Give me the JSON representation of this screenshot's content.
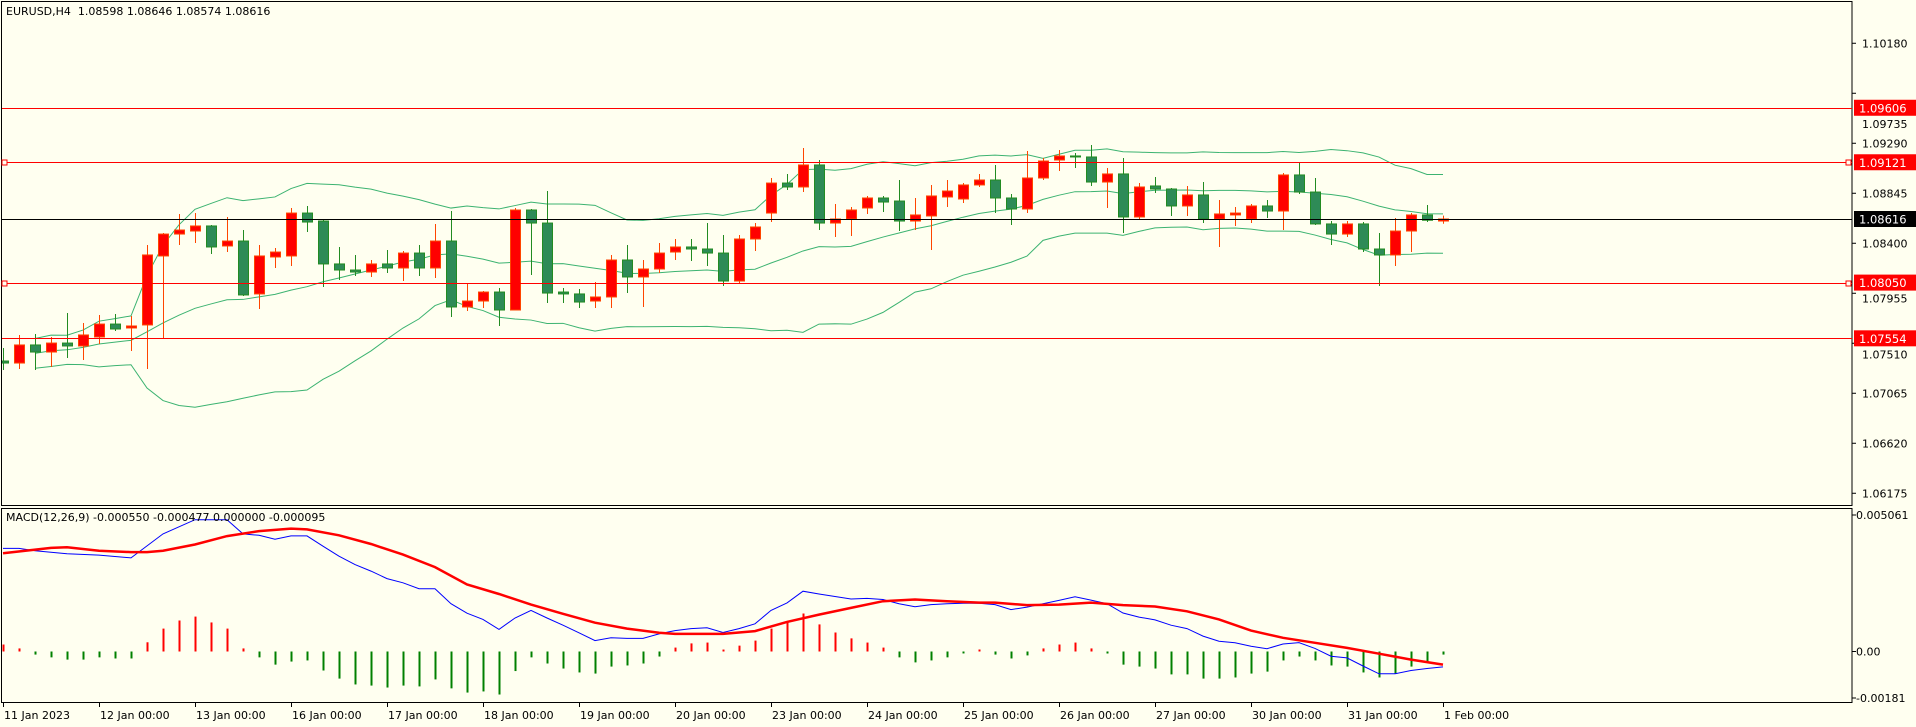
{
  "header": {
    "symbol_timeframe": "EURUSD,H4",
    "ohlc_text": "1.08598 1.08646 1.08574 1.08616"
  },
  "macd_header": {
    "name": "MACD(12,26,9)",
    "values_text": "-0.000550 -0.000477 0.000000 -0.000095"
  },
  "colors": {
    "background": "#FFFFF0",
    "bull_body": "#FF0000",
    "bull_outline": "#FF4500",
    "bear_body": "#2E8B57",
    "bear_outline": "#228B22",
    "bands": "#3CB371",
    "level_line": "#FF0000",
    "current_price": "#000000",
    "macd_line": "#0000FF",
    "signal_line": "#FF0000",
    "hist_pos": "#FF0000",
    "hist_neg": "#008000"
  },
  "chart_data": [
    {
      "type": "candlestick",
      "title": "EURUSD,H4",
      "ylim": [
        1.059,
        1.1067
      ],
      "price_axis_ticks": [
        "1.10180",
        "1.09735",
        "1.09290",
        "1.08845",
        "1.08400",
        "1.07955",
        "1.07510",
        "1.07065",
        "1.06620",
        "1.06175"
      ],
      "x_tick_labels": [
        "11 Jan 2023",
        "12 Jan 00:00",
        "13 Jan 00:00",
        "16 Jan 00:00",
        "17 Jan 00:00",
        "18 Jan 00:00",
        "19 Jan 00:00",
        "20 Jan 00:00",
        "23 Jan 00:00",
        "24 Jan 00:00",
        "25 Jan 00:00",
        "26 Jan 00:00",
        "27 Jan 00:00",
        "30 Jan 00:00",
        "31 Jan 00:00",
        "1 Feb 00:00"
      ],
      "x_tick_candle_index": [
        0,
        6,
        12,
        18,
        24,
        30,
        36,
        42,
        48,
        54,
        60,
        66,
        72,
        78,
        84,
        90
      ],
      "horizontal_levels": [
        {
          "price": 1.09606,
          "label": "1.09606",
          "anchored": false
        },
        {
          "price": 1.09121,
          "label": "1.09121",
          "anchored": true
        },
        {
          "price": 1.0805,
          "label": "1.08050",
          "anchored": true
        },
        {
          "price": 1.07554,
          "label": "1.07554",
          "anchored": false
        }
      ],
      "current_price": {
        "price": 1.08616,
        "label": "1.08616"
      },
      "indicator": "Bollinger Bands (20, 2)",
      "ohlc": [
        [
          1.07352,
          1.07468,
          1.07272,
          1.07334
        ],
        [
          1.07334,
          1.07584,
          1.07281,
          1.07495
        ],
        [
          1.07495,
          1.07593,
          1.07272,
          1.07432
        ],
        [
          1.07432,
          1.07566,
          1.07299,
          1.07512
        ],
        [
          1.07512,
          1.07779,
          1.07379,
          1.07486
        ],
        [
          1.07486,
          1.0769,
          1.07361,
          1.07584
        ],
        [
          1.07566,
          1.07762,
          1.07504,
          1.07681
        ],
        [
          1.07681,
          1.07771,
          1.07619,
          1.07637
        ],
        [
          1.07646,
          1.07753,
          1.07441,
          1.07664
        ],
        [
          1.07673,
          1.08385,
          1.07281,
          1.08296
        ],
        [
          1.08287,
          1.08491,
          1.07548,
          1.08482
        ],
        [
          1.08482,
          1.08661,
          1.08385,
          1.08518
        ],
        [
          1.08509,
          1.08669,
          1.08402,
          1.08554
        ],
        [
          1.08554,
          1.08563,
          1.08305,
          1.08367
        ],
        [
          1.08376,
          1.08634,
          1.08322,
          1.0842
        ],
        [
          1.0842,
          1.08518,
          1.07931,
          1.0794
        ],
        [
          1.07949,
          1.08385,
          1.07815,
          1.08287
        ],
        [
          1.08278,
          1.08358,
          1.0818,
          1.08322
        ],
        [
          1.08287,
          1.08714,
          1.08198,
          1.08669
        ],
        [
          1.08669,
          1.08732,
          1.085,
          1.08589
        ],
        [
          1.08598,
          1.0861,
          1.08011,
          1.08216
        ],
        [
          1.08216,
          1.08367,
          1.08073,
          1.08162
        ],
        [
          1.08162,
          1.08296,
          1.08109,
          1.08144
        ],
        [
          1.08144,
          1.08251,
          1.081,
          1.08216
        ],
        [
          1.08216,
          1.0834,
          1.08135,
          1.0818
        ],
        [
          1.0818,
          1.08331,
          1.08064,
          1.08313
        ],
        [
          1.08313,
          1.08385,
          1.08109,
          1.0818
        ],
        [
          1.0818,
          1.08572,
          1.08091,
          1.0842
        ],
        [
          1.0842,
          1.08687,
          1.07744,
          1.07833
        ],
        [
          1.07833,
          1.08046,
          1.07797,
          1.07886
        ],
        [
          1.07886,
          1.07975,
          1.07824,
          1.07966
        ],
        [
          1.07966,
          1.08002,
          1.07664,
          1.07806
        ],
        [
          1.07806,
          1.08714,
          1.07802,
          1.08696
        ],
        [
          1.08696,
          1.08705,
          1.08118,
          1.0858
        ],
        [
          1.0858,
          1.08865,
          1.07868,
          1.07957
        ],
        [
          1.07966,
          1.08002,
          1.07868,
          1.07949
        ],
        [
          1.07949,
          1.07993,
          1.07824,
          1.07877
        ],
        [
          1.07886,
          1.08055,
          1.07824,
          1.07922
        ],
        [
          1.07922,
          1.08296,
          1.07824,
          1.08251
        ],
        [
          1.08251,
          1.08385,
          1.07957,
          1.081
        ],
        [
          1.081,
          1.08251,
          1.07833,
          1.08171
        ],
        [
          1.08171,
          1.08402,
          1.08135,
          1.08313
        ],
        [
          1.08322,
          1.08438,
          1.08251,
          1.08367
        ],
        [
          1.08367,
          1.08438,
          1.08242,
          1.08349
        ],
        [
          1.08349,
          1.0858,
          1.08198,
          1.08313
        ],
        [
          1.08313,
          1.08474,
          1.0802,
          1.08064
        ],
        [
          1.08064,
          1.08474,
          1.08046,
          1.08438
        ],
        [
          1.08438,
          1.0858,
          1.08331,
          1.08545
        ],
        [
          1.08669,
          1.08981,
          1.08589,
          1.08936
        ],
        [
          1.08936,
          1.09017,
          1.08874,
          1.08901
        ],
        [
          1.08901,
          1.09248,
          1.08856,
          1.09097
        ],
        [
          1.09097,
          1.09141,
          1.08518,
          1.0858
        ],
        [
          1.0858,
          1.0875,
          1.08456,
          1.08616
        ],
        [
          1.08616,
          1.08723,
          1.08465,
          1.08696
        ],
        [
          1.08714,
          1.08821,
          1.08661,
          1.08803
        ],
        [
          1.08803,
          1.08821,
          1.08678,
          1.08767
        ],
        [
          1.08776,
          1.08963,
          1.08509,
          1.08598
        ],
        [
          1.08598,
          1.08803,
          1.08518,
          1.08652
        ],
        [
          1.08643,
          1.08919,
          1.0834,
          1.08821
        ],
        [
          1.08812,
          1.08963,
          1.08723,
          1.08865
        ],
        [
          1.08794,
          1.08936,
          1.08758,
          1.08919
        ],
        [
          1.08919,
          1.09017,
          1.08901,
          1.08963
        ],
        [
          1.08963,
          1.09097,
          1.08669,
          1.08803
        ],
        [
          1.08803,
          1.08839,
          1.08563,
          1.08705
        ],
        [
          1.08705,
          1.09221,
          1.08669,
          1.08981
        ],
        [
          1.08981,
          1.09159,
          1.08963,
          1.09132
        ],
        [
          1.09141,
          1.0923,
          1.09043,
          1.09177
        ],
        [
          1.09177,
          1.09203,
          1.0907,
          1.09168
        ],
        [
          1.09168,
          1.09275,
          1.0891,
          1.08945
        ],
        [
          1.08945,
          1.0907,
          1.08714,
          1.09017
        ],
        [
          1.09017,
          1.09159,
          1.08491,
          1.08634
        ],
        [
          1.08634,
          1.08936,
          1.08616,
          1.08901
        ],
        [
          1.0891,
          1.0899,
          1.08847,
          1.08883
        ],
        [
          1.08883,
          1.08892,
          1.08643,
          1.08732
        ],
        [
          1.08732,
          1.0891,
          1.08643,
          1.0883
        ],
        [
          1.0883,
          1.08945,
          1.0858,
          1.08616
        ],
        [
          1.08616,
          1.08785,
          1.08367,
          1.08661
        ],
        [
          1.08652,
          1.08723,
          1.08554,
          1.08669
        ],
        [
          1.08616,
          1.0875,
          1.0858,
          1.08732
        ],
        [
          1.08732,
          1.08785,
          1.08625,
          1.08687
        ],
        [
          1.08687,
          1.09025,
          1.08518,
          1.09008
        ],
        [
          1.09008,
          1.09123,
          1.08839,
          1.08856
        ],
        [
          1.08856,
          1.08981,
          1.08563,
          1.08572
        ],
        [
          1.08572,
          1.08598,
          1.08385,
          1.08482
        ],
        [
          1.08482,
          1.08598,
          1.08456,
          1.08572
        ],
        [
          1.08572,
          1.08589,
          1.08322,
          1.08349
        ],
        [
          1.08349,
          1.08491,
          1.0802,
          1.08296
        ],
        [
          1.08296,
          1.08625,
          1.08198,
          1.08509
        ],
        [
          1.08509,
          1.08669,
          1.08322,
          1.08652
        ],
        [
          1.08652,
          1.08741,
          1.08589,
          1.08605
        ],
        [
          1.08598,
          1.08646,
          1.08574,
          1.08616
        ]
      ]
    },
    {
      "type": "macd",
      "title": "MACD(12,26,9)",
      "ylim": [
        -0.00181,
        0.005061
      ],
      "axis_ticks": [
        "0.005061",
        "0.00",
        "-0.00181"
      ],
      "histogram": [
        0.00025,
        0.00011,
        -0.00011,
        -0.00021,
        -0.00029,
        -0.00029,
        -0.00021,
        -0.00025,
        -0.00025,
        0.00033,
        0.00082,
        0.00111,
        0.00125,
        0.00104,
        0.00082,
        0.00011,
        -0.00021,
        -0.00047,
        -0.00036,
        -0.00032,
        -0.00068,
        -0.00097,
        -0.00118,
        -0.00122,
        -0.00129,
        -0.00122,
        -0.00125,
        -0.001,
        -0.00132,
        -0.00147,
        -0.00143,
        -0.00154,
        -0.0007,
        -0.00021,
        -0.00043,
        -0.00061,
        -0.00075,
        -0.00079,
        -0.00054,
        -0.0005,
        -0.00043,
        -0.00018,
        0.00014,
        0.00029,
        0.00032,
        7e-05,
        0.00021,
        0.00039,
        0.00082,
        0.00107,
        0.00136,
        0.00097,
        0.00068,
        0.00047,
        0.00032,
        0.00014,
        -0.00021,
        -0.00039,
        -0.00032,
        -0.00021,
        -7e-05,
        4e-05,
        -0.00011,
        -0.00025,
        -0.00014,
        0.00011,
        0.00025,
        0.00032,
        0.00011,
        -2e-05,
        -0.00047,
        -0.00054,
        -0.00061,
        -0.00082,
        -0.00082,
        -0.00097,
        -0.00097,
        -0.00093,
        -0.00079,
        -0.00072,
        -0.00032,
        -0.00018,
        -0.00032,
        -0.0005,
        -0.00054,
        -0.00075,
        -0.00093,
        -0.00079,
        -0.00054,
        -0.00039,
        -0.00011
      ],
      "macd_line_points": [
        [
          0,
          0.00369
        ],
        [
          1,
          0.00369
        ],
        [
          2,
          0.00361
        ],
        [
          4,
          0.0035
        ],
        [
          6,
          0.00345
        ],
        [
          8,
          0.00335
        ],
        [
          10,
          0.00421
        ],
        [
          12,
          0.00472
        ],
        [
          14,
          0.00472
        ],
        [
          15,
          0.00421
        ],
        [
          16,
          0.00416
        ],
        [
          17,
          0.00402
        ],
        [
          18,
          0.00414
        ],
        [
          19,
          0.00414
        ],
        [
          20,
          0.00377
        ],
        [
          21,
          0.00341
        ],
        [
          22,
          0.00311
        ],
        [
          23,
          0.00288
        ],
        [
          24,
          0.00261
        ],
        [
          25,
          0.00246
        ],
        [
          26,
          0.00225
        ],
        [
          27,
          0.00225
        ],
        [
          28,
          0.00171
        ],
        [
          29,
          0.00137
        ],
        [
          30,
          0.00115
        ],
        [
          31,
          0.00079
        ],
        [
          32,
          0.0012
        ],
        [
          33,
          0.00147
        ],
        [
          34,
          0.0012
        ],
        [
          35,
          0.00094
        ],
        [
          36,
          0.00067
        ],
        [
          37,
          0.00039
        ],
        [
          38,
          0.00049
        ],
        [
          39,
          0.00047
        ],
        [
          40,
          0.00047
        ],
        [
          41,
          0.00063
        ],
        [
          42,
          0.00075
        ],
        [
          43,
          0.00082
        ],
        [
          44,
          0.00085
        ],
        [
          45,
          0.00068
        ],
        [
          46,
          0.00082
        ],
        [
          47,
          0.00099
        ],
        [
          48,
          0.00147
        ],
        [
          49,
          0.00174
        ],
        [
          50,
          0.00216
        ],
        [
          51,
          0.00206
        ],
        [
          52,
          0.00197
        ],
        [
          53,
          0.00188
        ],
        [
          54,
          0.0019
        ],
        [
          55,
          0.00186
        ],
        [
          56,
          0.00171
        ],
        [
          57,
          0.0016
        ],
        [
          58,
          0.00168
        ],
        [
          59,
          0.00171
        ],
        [
          60,
          0.00173
        ],
        [
          61,
          0.00173
        ],
        [
          62,
          0.00168
        ],
        [
          63,
          0.0015
        ],
        [
          64,
          0.00159
        ],
        [
          65,
          0.00171
        ],
        [
          66,
          0.00183
        ],
        [
          67,
          0.00196
        ],
        [
          68,
          0.00184
        ],
        [
          69,
          0.00171
        ],
        [
          70,
          0.00138
        ],
        [
          71,
          0.00123
        ],
        [
          72,
          0.00113
        ],
        [
          73,
          0.00094
        ],
        [
          74,
          0.00082
        ],
        [
          75,
          0.00055
        ],
        [
          76,
          0.00037
        ],
        [
          77,
          0.00031
        ],
        [
          78,
          0.00019
        ],
        [
          79,
          0.0001
        ],
        [
          80,
          0.00027
        ],
        [
          81,
          0.00032
        ],
        [
          82,
          0.00011
        ],
        [
          83,
          -0.00017
        ],
        [
          84,
          -0.00023
        ],
        [
          85,
          -0.00052
        ],
        [
          86,
          -0.0008
        ],
        [
          87,
          -0.0008
        ],
        [
          88,
          -0.00068
        ],
        [
          89,
          -0.00061
        ],
        [
          90,
          -0.00055
        ]
      ],
      "signal_line_points": [
        [
          0,
          0.00352
        ],
        [
          3,
          0.00371
        ],
        [
          4,
          0.00373
        ],
        [
          6,
          0.00361
        ],
        [
          8,
          0.00356
        ],
        [
          9,
          0.00356
        ],
        [
          10,
          0.00361
        ],
        [
          12,
          0.00383
        ],
        [
          14,
          0.00413
        ],
        [
          16,
          0.00431
        ],
        [
          18,
          0.0044
        ],
        [
          19,
          0.00437
        ],
        [
          21,
          0.00416
        ],
        [
          23,
          0.00385
        ],
        [
          25,
          0.00347
        ],
        [
          27,
          0.00302
        ],
        [
          29,
          0.0024
        ],
        [
          31,
          0.00206
        ],
        [
          33,
          0.00168
        ],
        [
          35,
          0.00135
        ],
        [
          37,
          0.00103
        ],
        [
          39,
          0.00082
        ],
        [
          41,
          0.00067
        ],
        [
          42,
          0.00063
        ],
        [
          45,
          0.00063
        ],
        [
          47,
          0.00073
        ],
        [
          49,
          0.00106
        ],
        [
          51,
          0.00132
        ],
        [
          53,
          0.00156
        ],
        [
          55,
          0.0018
        ],
        [
          57,
          0.00186
        ],
        [
          59,
          0.0018
        ],
        [
          61,
          0.00175
        ],
        [
          62,
          0.00175
        ],
        [
          64,
          0.00166
        ],
        [
          66,
          0.00168
        ],
        [
          68,
          0.00175
        ],
        [
          70,
          0.00166
        ],
        [
          72,
          0.00161
        ],
        [
          74,
          0.00144
        ],
        [
          76,
          0.00115
        ],
        [
          78,
          0.00075
        ],
        [
          80,
          0.00049
        ],
        [
          82,
          0.00031
        ],
        [
          84,
          0.00013
        ],
        [
          86,
          -8e-05
        ],
        [
          88,
          -0.00029
        ],
        [
          90,
          -0.00047
        ]
      ]
    }
  ]
}
